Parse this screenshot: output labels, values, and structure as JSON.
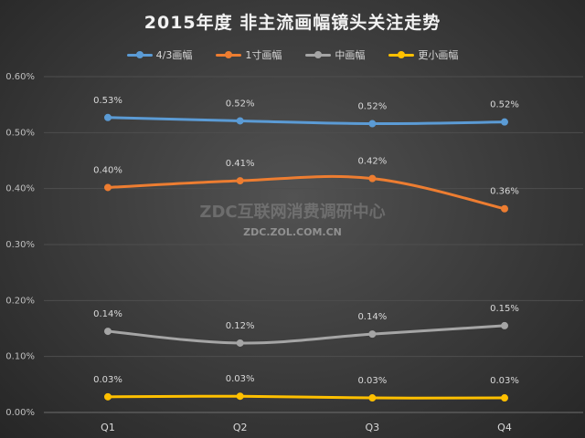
{
  "chart_data": {
    "type": "line",
    "title": "2015年度 非主流画幅镜头关注走势",
    "categories": [
      "Q1",
      "Q2",
      "Q3",
      "Q4"
    ],
    "ylim": [
      0,
      0.6
    ],
    "yticks": [
      0,
      0.1,
      0.2,
      0.3,
      0.4,
      0.5,
      0.6
    ],
    "ytick_labels": [
      "0.00%",
      "0.10%",
      "0.20%",
      "0.30%",
      "0.40%",
      "0.50%",
      "0.60%"
    ],
    "xlabel": "",
    "ylabel": "",
    "legend_position": "top",
    "grid": true,
    "series": [
      {
        "name": "4/3画幅",
        "color": "#5b9bd5",
        "values": [
          0.53,
          0.52,
          0.52,
          0.52
        ],
        "labels": [
          "0.53%",
          "0.52%",
          "0.52%",
          "0.52%"
        ],
        "plot_values": [
          0.527,
          0.521,
          0.516,
          0.519
        ]
      },
      {
        "name": "1寸画幅",
        "color": "#ed7d31",
        "values": [
          0.4,
          0.41,
          0.42,
          0.36
        ],
        "labels": [
          "0.40%",
          "0.41%",
          "0.42%",
          "0.36%"
        ],
        "plot_values": [
          0.402,
          0.414,
          0.418,
          0.364
        ]
      },
      {
        "name": "中画幅",
        "color": "#a5a5a5",
        "values": [
          0.14,
          0.12,
          0.14,
          0.15
        ],
        "labels": [
          "0.14%",
          "0.12%",
          "0.14%",
          "0.15%"
        ],
        "plot_values": [
          0.145,
          0.124,
          0.14,
          0.155
        ]
      },
      {
        "name": "更小画幅",
        "color": "#ffc000",
        "values": [
          0.03,
          0.03,
          0.03,
          0.03
        ],
        "labels": [
          "0.03%",
          "0.03%",
          "0.03%",
          "0.03%"
        ],
        "plot_values": [
          0.028,
          0.029,
          0.026,
          0.026
        ]
      }
    ]
  },
  "watermark": {
    "main": "ZDC互联网消费调研中心",
    "sub": "ZDC.ZOL.COM.CN"
  }
}
